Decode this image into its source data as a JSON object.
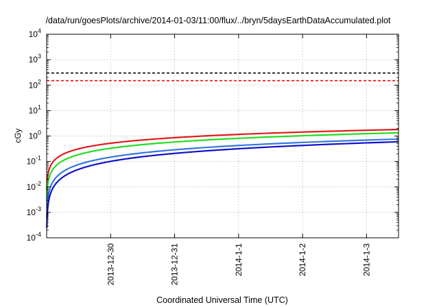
{
  "chart_data": {
    "type": "line",
    "title": "/data/run/goesPlots/archive/2014-01-03/11:00/flux/../bryn/5daysEarthDataAccumulated.plot",
    "xlabel": "Coordinated Universal Time (UTC)",
    "ylabel": "cGy",
    "yscale": "log",
    "ylim": [
      0.0001,
      10000
    ],
    "xlim": [
      0,
      5.5
    ],
    "y_ticks": [
      {
        "value": 0.0001,
        "base": "10",
        "exp": "-4"
      },
      {
        "value": 0.001,
        "base": "10",
        "exp": "-3"
      },
      {
        "value": 0.01,
        "base": "10",
        "exp": "-2"
      },
      {
        "value": 0.1,
        "base": "10",
        "exp": "-1"
      },
      {
        "value": 1,
        "base": "10",
        "exp": "0"
      },
      {
        "value": 10,
        "base": "10",
        "exp": "1"
      },
      {
        "value": 100,
        "base": "10",
        "exp": "2"
      },
      {
        "value": 1000,
        "base": "10",
        "exp": "3"
      },
      {
        "value": 10000,
        "base": "10",
        "exp": "4"
      }
    ],
    "x_ticks": [
      {
        "value": 1,
        "label": "2013-12-30"
      },
      {
        "value": 2,
        "label": "2013-12-31"
      },
      {
        "value": 3,
        "label": "2014-1-1"
      },
      {
        "value": 4,
        "label": "2014-1-2"
      },
      {
        "value": 5,
        "label": "2014-1-3"
      }
    ],
    "grid": true,
    "thresholds": [
      {
        "name": "black-dashed-threshold",
        "y": 300,
        "color": "#000000"
      },
      {
        "name": "red-dashed-threshold",
        "y": 150,
        "color": "#ff0000"
      }
    ],
    "series": [
      {
        "name": "red",
        "color": "#e31a1c",
        "a": 0.52,
        "b": 0.73,
        "x": [
          0.005,
          0.1,
          0.5,
          1.0,
          2.0,
          3.0,
          4.0,
          5.0,
          5.5
        ],
        "values": [
          0.011,
          0.097,
          0.31,
          0.52,
          0.86,
          1.16,
          1.43,
          1.68,
          1.8
        ]
      },
      {
        "name": "green",
        "color": "#22dd22",
        "a": 0.33,
        "b": 0.82,
        "x": [
          0.005,
          0.1,
          0.5,
          1.0,
          2.0,
          3.0,
          4.0,
          5.0,
          5.5
        ],
        "values": [
          0.0043,
          0.05,
          0.19,
          0.33,
          0.58,
          0.82,
          1.03,
          1.24,
          1.34
        ]
      },
      {
        "name": "light-blue",
        "color": "#3377dd",
        "a": 0.148,
        "b": 0.96,
        "x": [
          0.005,
          0.1,
          0.5,
          1.0,
          2.0,
          3.0,
          4.0,
          5.0,
          5.5
        ],
        "values": [
          0.00097,
          0.016,
          0.076,
          0.148,
          0.29,
          0.43,
          0.56,
          0.7,
          0.76
        ]
      },
      {
        "name": "dark-blue",
        "color": "#1010cc",
        "a": 0.101,
        "b": 1.04,
        "x": [
          0.005,
          0.1,
          0.5,
          1.0,
          2.0,
          3.0,
          4.0,
          5.0,
          5.5
        ],
        "values": [
          0.00041,
          0.0093,
          0.049,
          0.101,
          0.21,
          0.32,
          0.43,
          0.54,
          0.59
        ]
      }
    ]
  }
}
